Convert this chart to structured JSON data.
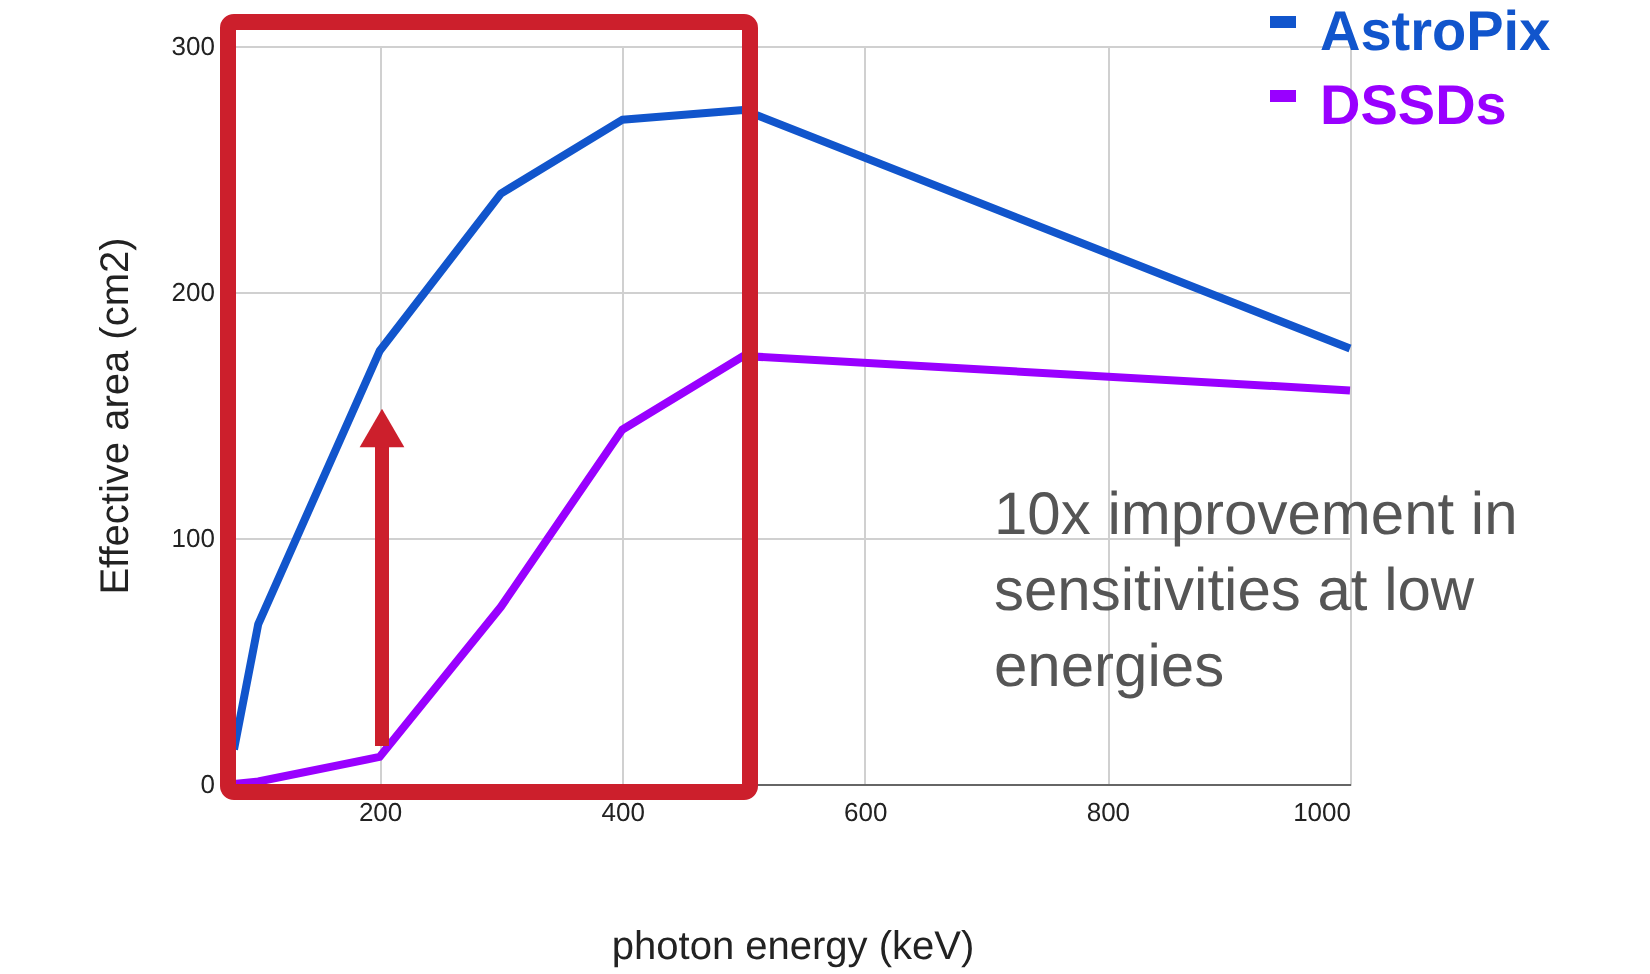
{
  "chart_data": {
    "type": "line",
    "xlabel": "photon energy (keV)",
    "ylabel": "Effective area (cm2)",
    "x": [
      80,
      100,
      200,
      300,
      400,
      500,
      1000
    ],
    "series": [
      {
        "name": "AstroPix",
        "color": "#1155cc",
        "values": [
          14,
          65,
          176,
          240,
          270,
          274,
          177
        ]
      },
      {
        "name": "DSSDs",
        "color": "#9900ff",
        "values": [
          0,
          1,
          11,
          72,
          144,
          174,
          160
        ]
      }
    ],
    "xlim": [
      80,
      1000
    ],
    "xticks": [
      200,
      400,
      600,
      800,
      1000
    ],
    "ylim": [
      0,
      300
    ],
    "yticks": [
      0,
      100,
      200,
      300
    ],
    "grid": true,
    "legend": "top right",
    "marker": "none",
    "line_style": "solid",
    "annotations": [
      "10x improvement in sensitivities at low energies"
    ]
  }
}
